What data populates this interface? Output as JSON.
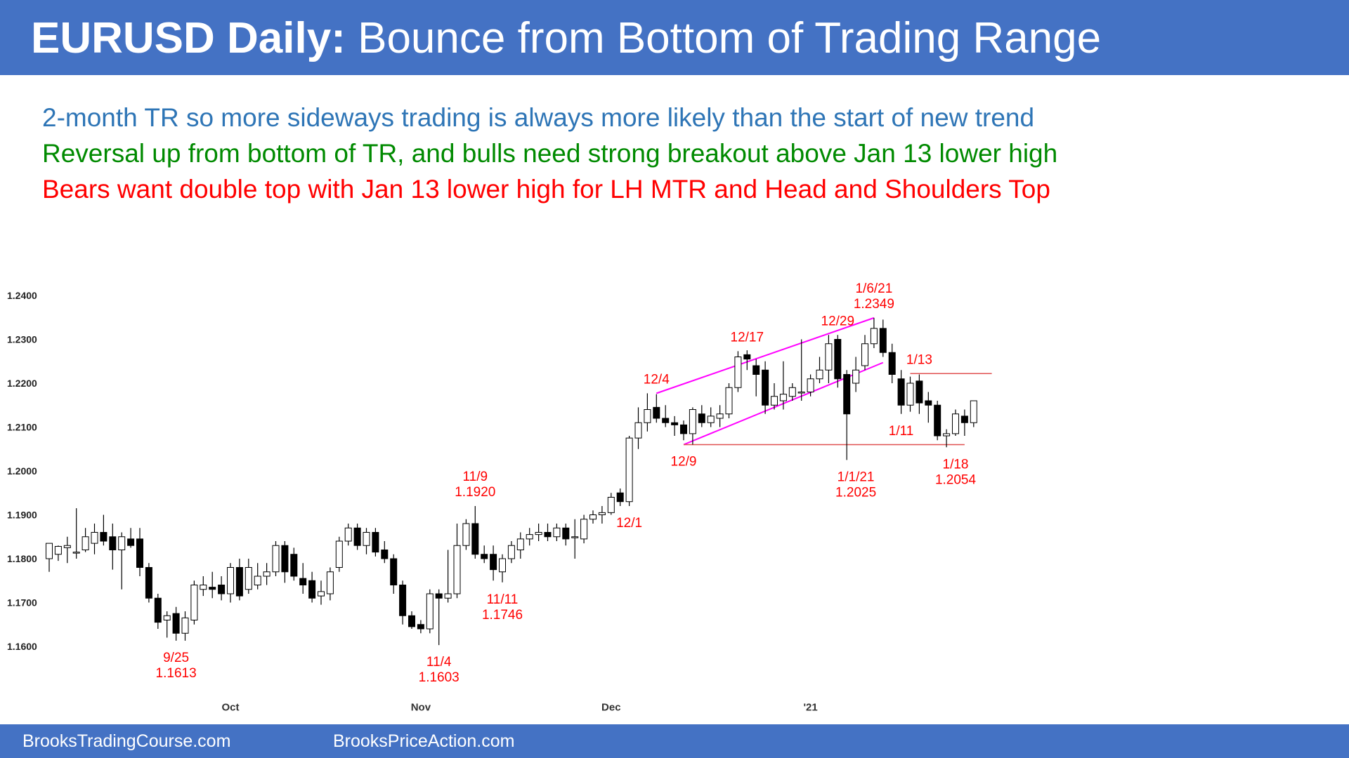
{
  "header": {
    "title_bold": "EURUSD Daily:",
    "title_rest": " Bounce from Bottom of Trading Range"
  },
  "notes": [
    "2-month TR so more sideways trading is always more likely than the start of new trend",
    "Reversal up from bottom of TR, and bulls need strong breakout above Jan 13 lower high",
    "Bears want double top with Jan 13 lower high for LH MTR and Head and Shoulders Top"
  ],
  "colors": {
    "banner": "#4472c4",
    "note_blue": "#2e75b6",
    "note_green": "#008a00",
    "note_red": "#ff0000",
    "channel": "#ff00ff",
    "annotation": "#ff0000"
  },
  "footer": {
    "left": "BrooksTradingCourse.com",
    "right": "BrooksPriceAction.com"
  },
  "chart_data": {
    "type": "candlestick",
    "title": "",
    "ylim": [
      1.157,
      1.247
    ],
    "yticks": [
      "1.2400",
      "1.2300",
      "1.2200",
      "1.2100",
      "1.2000",
      "1.1900",
      "1.1800",
      "1.1700",
      "1.1600"
    ],
    "xticks": [
      {
        "label": "Oct",
        "bar": 20
      },
      {
        "label": "Nov",
        "bar": 41
      },
      {
        "label": "Dec",
        "bar": 62
      },
      {
        "label": "'21",
        "bar": 84
      }
    ],
    "candles": [
      {
        "o": 1.18,
        "h": 1.1835,
        "l": 1.177,
        "c": 1.1835
      },
      {
        "o": 1.181,
        "h": 1.183,
        "l": 1.1795,
        "c": 1.1828
      },
      {
        "o": 1.1825,
        "h": 1.185,
        "l": 1.179,
        "c": 1.183
      },
      {
        "o": 1.1815,
        "h": 1.1915,
        "l": 1.18,
        "c": 1.1815
      },
      {
        "o": 1.182,
        "h": 1.187,
        "l": 1.1815,
        "c": 1.185
      },
      {
        "o": 1.1835,
        "h": 1.188,
        "l": 1.181,
        "c": 1.186
      },
      {
        "o": 1.186,
        "h": 1.19,
        "l": 1.183,
        "c": 1.184
      },
      {
        "o": 1.185,
        "h": 1.188,
        "l": 1.1775,
        "c": 1.182
      },
      {
        "o": 1.182,
        "h": 1.186,
        "l": 1.173,
        "c": 1.185
      },
      {
        "o": 1.1845,
        "h": 1.187,
        "l": 1.1825,
        "c": 1.183
      },
      {
        "o": 1.1845,
        "h": 1.187,
        "l": 1.176,
        "c": 1.178
      },
      {
        "o": 1.178,
        "h": 1.179,
        "l": 1.17,
        "c": 1.171
      },
      {
        "o": 1.171,
        "h": 1.172,
        "l": 1.164,
        "c": 1.1655
      },
      {
        "o": 1.166,
        "h": 1.168,
        "l": 1.162,
        "c": 1.167
      },
      {
        "o": 1.1675,
        "h": 1.169,
        "l": 1.1613,
        "c": 1.163
      },
      {
        "o": 1.163,
        "h": 1.168,
        "l": 1.1613,
        "c": 1.1665
      },
      {
        "o": 1.166,
        "h": 1.175,
        "l": 1.165,
        "c": 1.174
      },
      {
        "o": 1.173,
        "h": 1.176,
        "l": 1.1715,
        "c": 1.174
      },
      {
        "o": 1.1735,
        "h": 1.177,
        "l": 1.171,
        "c": 1.173
      },
      {
        "o": 1.174,
        "h": 1.176,
        "l": 1.1705,
        "c": 1.172
      },
      {
        "o": 1.172,
        "h": 1.179,
        "l": 1.17,
        "c": 1.178
      },
      {
        "o": 1.178,
        "h": 1.18,
        "l": 1.1705,
        "c": 1.1715
      },
      {
        "o": 1.173,
        "h": 1.18,
        "l": 1.172,
        "c": 1.178
      },
      {
        "o": 1.174,
        "h": 1.179,
        "l": 1.173,
        "c": 1.176
      },
      {
        "o": 1.176,
        "h": 1.179,
        "l": 1.174,
        "c": 1.177
      },
      {
        "o": 1.177,
        "h": 1.184,
        "l": 1.176,
        "c": 1.183
      },
      {
        "o": 1.183,
        "h": 1.184,
        "l": 1.1745,
        "c": 1.177
      },
      {
        "o": 1.181,
        "h": 1.1825,
        "l": 1.175,
        "c": 1.176
      },
      {
        "o": 1.1755,
        "h": 1.179,
        "l": 1.172,
        "c": 1.174
      },
      {
        "o": 1.175,
        "h": 1.177,
        "l": 1.17,
        "c": 1.171
      },
      {
        "o": 1.1715,
        "h": 1.175,
        "l": 1.1695,
        "c": 1.1725
      },
      {
        "o": 1.172,
        "h": 1.178,
        "l": 1.1705,
        "c": 1.177
      },
      {
        "o": 1.178,
        "h": 1.185,
        "l": 1.177,
        "c": 1.184
      },
      {
        "o": 1.184,
        "h": 1.188,
        "l": 1.183,
        "c": 1.187
      },
      {
        "o": 1.187,
        "h": 1.188,
        "l": 1.182,
        "c": 1.183
      },
      {
        "o": 1.183,
        "h": 1.187,
        "l": 1.181,
        "c": 1.186
      },
      {
        "o": 1.186,
        "h": 1.187,
        "l": 1.1805,
        "c": 1.1815
      },
      {
        "o": 1.182,
        "h": 1.184,
        "l": 1.179,
        "c": 1.18
      },
      {
        "o": 1.18,
        "h": 1.181,
        "l": 1.172,
        "c": 1.174
      },
      {
        "o": 1.174,
        "h": 1.175,
        "l": 1.165,
        "c": 1.167
      },
      {
        "o": 1.167,
        "h": 1.168,
        "l": 1.164,
        "c": 1.1645
      },
      {
        "o": 1.165,
        "h": 1.166,
        "l": 1.163,
        "c": 1.164
      },
      {
        "o": 1.164,
        "h": 1.173,
        "l": 1.163,
        "c": 1.172
      },
      {
        "o": 1.172,
        "h": 1.173,
        "l": 1.1603,
        "c": 1.171
      },
      {
        "o": 1.171,
        "h": 1.182,
        "l": 1.17,
        "c": 1.172
      },
      {
        "o": 1.172,
        "h": 1.188,
        "l": 1.171,
        "c": 1.183
      },
      {
        "o": 1.183,
        "h": 1.189,
        "l": 1.182,
        "c": 1.188
      },
      {
        "o": 1.188,
        "h": 1.192,
        "l": 1.18,
        "c": 1.181
      },
      {
        "o": 1.181,
        "h": 1.183,
        "l": 1.179,
        "c": 1.18
      },
      {
        "o": 1.181,
        "h": 1.183,
        "l": 1.175,
        "c": 1.1775
      },
      {
        "o": 1.177,
        "h": 1.181,
        "l": 1.1746,
        "c": 1.18
      },
      {
        "o": 1.18,
        "h": 1.184,
        "l": 1.179,
        "c": 1.183
      },
      {
        "o": 1.182,
        "h": 1.186,
        "l": 1.18,
        "c": 1.1845
      },
      {
        "o": 1.1845,
        "h": 1.187,
        "l": 1.183,
        "c": 1.1855
      },
      {
        "o": 1.1855,
        "h": 1.188,
        "l": 1.184,
        "c": 1.186
      },
      {
        "o": 1.186,
        "h": 1.188,
        "l": 1.184,
        "c": 1.185
      },
      {
        "o": 1.185,
        "h": 1.188,
        "l": 1.184,
        "c": 1.187
      },
      {
        "o": 1.187,
        "h": 1.188,
        "l": 1.183,
        "c": 1.1845
      },
      {
        "o": 1.185,
        "h": 1.189,
        "l": 1.18,
        "c": 1.185
      },
      {
        "o": 1.1845,
        "h": 1.19,
        "l": 1.1835,
        "c": 1.189
      },
      {
        "o": 1.189,
        "h": 1.191,
        "l": 1.188,
        "c": 1.19
      },
      {
        "o": 1.19,
        "h": 1.192,
        "l": 1.188,
        "c": 1.1905
      },
      {
        "o": 1.1905,
        "h": 1.195,
        "l": 1.19,
        "c": 1.194
      },
      {
        "o": 1.195,
        "h": 1.196,
        "l": 1.192,
        "c": 1.193
      },
      {
        "o": 1.193,
        "h": 1.208,
        "l": 1.192,
        "c": 1.2075
      },
      {
        "o": 1.2075,
        "h": 1.2145,
        "l": 1.205,
        "c": 1.211
      },
      {
        "o": 1.211,
        "h": 1.2177,
        "l": 1.209,
        "c": 1.214
      },
      {
        "o": 1.2145,
        "h": 1.2175,
        "l": 1.211,
        "c": 1.212
      },
      {
        "o": 1.212,
        "h": 1.215,
        "l": 1.21,
        "c": 1.211
      },
      {
        "o": 1.211,
        "h": 1.2125,
        "l": 1.208,
        "c": 1.2105
      },
      {
        "o": 1.2105,
        "h": 1.2115,
        "l": 1.207,
        "c": 1.2085
      },
      {
        "o": 1.2085,
        "h": 1.2145,
        "l": 1.206,
        "c": 1.214
      },
      {
        "o": 1.213,
        "h": 1.215,
        "l": 1.21,
        "c": 1.211
      },
      {
        "o": 1.211,
        "h": 1.2145,
        "l": 1.21,
        "c": 1.2125
      },
      {
        "o": 1.212,
        "h": 1.215,
        "l": 1.21,
        "c": 1.213
      },
      {
        "o": 1.213,
        "h": 1.22,
        "l": 1.212,
        "c": 1.219
      },
      {
        "o": 1.219,
        "h": 1.2273,
        "l": 1.218,
        "c": 1.226
      },
      {
        "o": 1.2265,
        "h": 1.2275,
        "l": 1.223,
        "c": 1.2255
      },
      {
        "o": 1.224,
        "h": 1.2255,
        "l": 1.217,
        "c": 1.222
      },
      {
        "o": 1.223,
        "h": 1.225,
        "l": 1.213,
        "c": 1.215
      },
      {
        "o": 1.215,
        "h": 1.22,
        "l": 1.214,
        "c": 1.217
      },
      {
        "o": 1.216,
        "h": 1.225,
        "l": 1.214,
        "c": 1.2175
      },
      {
        "o": 1.217,
        "h": 1.22,
        "l": 1.216,
        "c": 1.219
      },
      {
        "o": 1.218,
        "h": 1.23,
        "l": 1.216,
        "c": 1.218
      },
      {
        "o": 1.218,
        "h": 1.222,
        "l": 1.217,
        "c": 1.221
      },
      {
        "o": 1.221,
        "h": 1.226,
        "l": 1.22,
        "c": 1.223
      },
      {
        "o": 1.223,
        "h": 1.231,
        "l": 1.22,
        "c": 1.229
      },
      {
        "o": 1.23,
        "h": 1.231,
        "l": 1.219,
        "c": 1.221
      },
      {
        "o": 1.222,
        "h": 1.223,
        "l": 1.2025,
        "c": 1.213
      },
      {
        "o": 1.22,
        "h": 1.226,
        "l": 1.218,
        "c": 1.223
      },
      {
        "o": 1.224,
        "h": 1.231,
        "l": 1.223,
        "c": 1.229
      },
      {
        "o": 1.229,
        "h": 1.2349,
        "l": 1.228,
        "c": 1.2325
      },
      {
        "o": 1.2325,
        "h": 1.2345,
        "l": 1.226,
        "c": 1.227
      },
      {
        "o": 1.227,
        "h": 1.229,
        "l": 1.22,
        "c": 1.222
      },
      {
        "o": 1.221,
        "h": 1.223,
        "l": 1.213,
        "c": 1.215
      },
      {
        "o": 1.215,
        "h": 1.2215,
        "l": 1.2135,
        "c": 1.22
      },
      {
        "o": 1.2205,
        "h": 1.222,
        "l": 1.213,
        "c": 1.2155
      },
      {
        "o": 1.216,
        "h": 1.218,
        "l": 1.211,
        "c": 1.215
      },
      {
        "o": 1.215,
        "h": 1.216,
        "l": 1.207,
        "c": 1.208
      },
      {
        "o": 1.208,
        "h": 1.2095,
        "l": 1.2054,
        "c": 1.2085
      },
      {
        "o": 1.2085,
        "h": 1.214,
        "l": 1.208,
        "c": 1.213
      },
      {
        "o": 1.2125,
        "h": 1.214,
        "l": 1.208,
        "c": 1.211
      },
      {
        "o": 1.211,
        "h": 1.216,
        "l": 1.21,
        "c": 1.216
      }
    ],
    "channel_lines": [
      {
        "from": {
          "bar": 67,
          "price": 1.2177
        },
        "to": {
          "bar": 91,
          "price": 1.2349
        }
      },
      {
        "from": {
          "bar": 70,
          "price": 1.206
        },
        "to": {
          "bar": 92,
          "price": 1.2247
        }
      }
    ],
    "level_lines": [
      {
        "from": {
          "bar": 70,
          "price": 1.206
        },
        "to": {
          "bar": 101,
          "price": 1.206
        }
      },
      {
        "from": {
          "bar": 95,
          "price": 1.2222
        },
        "to": {
          "bar": 104,
          "price": 1.2222
        }
      }
    ],
    "annotations": [
      {
        "bar": 14,
        "price": 1.1613,
        "side": "below",
        "lines": [
          "9/25",
          "1.1613"
        ]
      },
      {
        "bar": 43,
        "price": 1.1603,
        "side": "below",
        "lines": [
          "11/4",
          "1.1603"
        ]
      },
      {
        "bar": 47,
        "price": 1.192,
        "side": "above",
        "lines": [
          "11/9",
          "1.1920"
        ]
      },
      {
        "bar": 50,
        "price": 1.1746,
        "side": "below",
        "lines": [
          "11/11",
          "1.1746"
        ]
      },
      {
        "bar": 64,
        "price": 1.192,
        "side": "below",
        "lines": [
          "12/1"
        ]
      },
      {
        "bar": 67,
        "price": 1.2177,
        "side": "above",
        "lines": [
          "12/4"
        ]
      },
      {
        "bar": 70,
        "price": 1.206,
        "side": "below",
        "lines": [
          "12/9"
        ]
      },
      {
        "bar": 77,
        "price": 1.2273,
        "side": "above",
        "lines": [
          "12/17"
        ]
      },
      {
        "bar": 87,
        "price": 1.231,
        "side": "above",
        "lines": [
          "12/29"
        ]
      },
      {
        "bar": 91,
        "price": 1.2349,
        "side": "above",
        "lines": [
          "1/6/21",
          "1.2349"
        ]
      },
      {
        "bar": 89,
        "price": 1.2025,
        "side": "below",
        "lines": [
          "1/1/21",
          "1.2025"
        ]
      },
      {
        "bar": 94,
        "price": 1.213,
        "side": "below",
        "lines": [
          "1/11"
        ]
      },
      {
        "bar": 96,
        "price": 1.2222,
        "side": "above",
        "lines": [
          "1/13"
        ]
      },
      {
        "bar": 100,
        "price": 1.2054,
        "side": "below",
        "lines": [
          "1/18",
          "1.2054"
        ]
      }
    ]
  }
}
